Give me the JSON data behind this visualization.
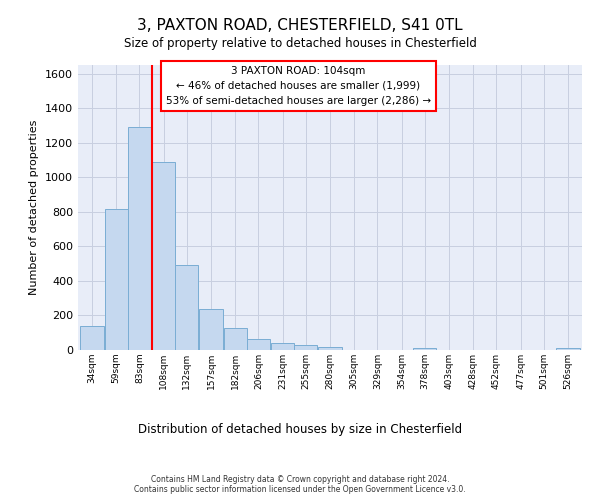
{
  "title": "3, PAXTON ROAD, CHESTERFIELD, S41 0TL",
  "subtitle": "Size of property relative to detached houses in Chesterfield",
  "xlabel": "Distribution of detached houses by size in Chesterfield",
  "ylabel": "Number of detached properties",
  "bar_color": "#c5d8ef",
  "bar_edge_color": "#7aadd4",
  "grid_color": "#c8cfe0",
  "bg_color": "#e8edf8",
  "annotation_line_color": "red",
  "property_line_x": 108,
  "bin_starts": [
    34,
    59,
    83,
    108,
    132,
    157,
    182,
    206,
    231,
    255,
    280,
    305,
    329,
    354,
    378,
    403,
    428,
    452,
    477,
    501,
    526
  ],
  "bin_width": 25,
  "bar_heights": [
    140,
    815,
    1290,
    1090,
    495,
    235,
    130,
    65,
    38,
    27,
    15,
    0,
    0,
    0,
    13,
    0,
    0,
    0,
    0,
    0,
    13
  ],
  "categories": [
    "34sqm",
    "59sqm",
    "83sqm",
    "108sqm",
    "132sqm",
    "157sqm",
    "182sqm",
    "206sqm",
    "231sqm",
    "255sqm",
    "280sqm",
    "305sqm",
    "329sqm",
    "354sqm",
    "378sqm",
    "403sqm",
    "428sqm",
    "452sqm",
    "477sqm",
    "501sqm",
    "526sqm"
  ],
  "ylim": [
    0,
    1650
  ],
  "yticks": [
    0,
    200,
    400,
    600,
    800,
    1000,
    1200,
    1400,
    1600
  ],
  "ann_line1": "3 PAXTON ROAD: 104sqm",
  "ann_line2": "← 46% of detached houses are smaller (1,999)",
  "ann_line3": "53% of semi-detached houses are larger (2,286) →",
  "footer1": "Contains HM Land Registry data © Crown copyright and database right 2024.",
  "footer2": "Contains public sector information licensed under the Open Government Licence v3.0."
}
